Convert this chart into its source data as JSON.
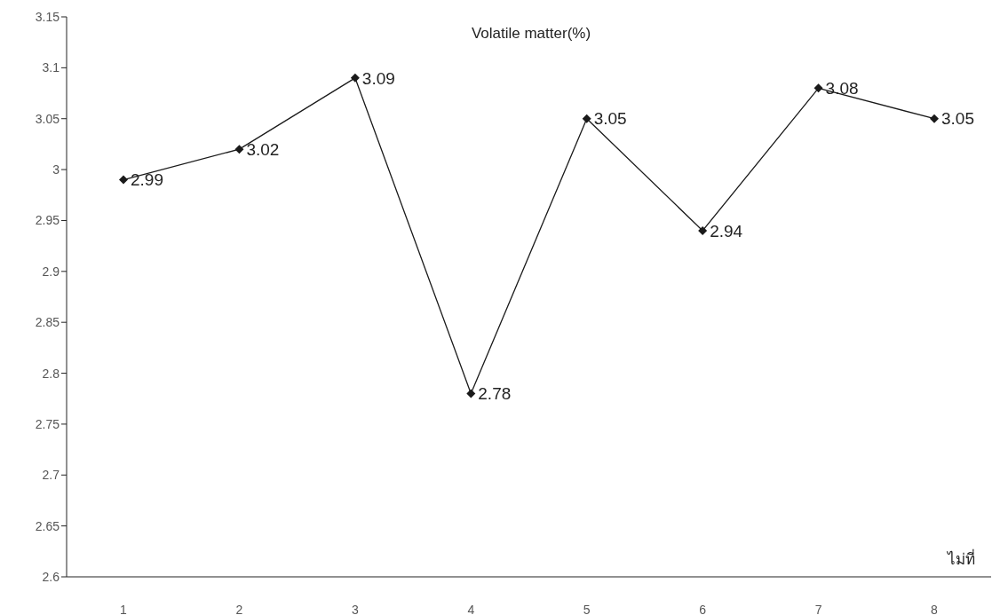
{
  "chart_data": {
    "type": "line",
    "title": "Volatile matter(%)",
    "xlabel": "ไม่ที่",
    "categories": [
      "1",
      "2",
      "3",
      "4",
      "5",
      "6",
      "7",
      "8"
    ],
    "series": [
      {
        "color": "#1a1a1a",
        "values": [
          2.99,
          3.02,
          3.09,
          2.78,
          3.05,
          2.94,
          3.08,
          3.05
        ]
      }
    ],
    "ylim": [
      2.6,
      3.15
    ],
    "yticks": [
      2.6,
      2.65,
      2.7,
      2.75,
      2.8,
      2.85,
      2.9,
      2.95,
      3,
      3.05,
      3.1,
      3.15
    ],
    "grid": false,
    "legend": false,
    "marker": "diamond",
    "line_style": "solid",
    "data_labels": true
  }
}
